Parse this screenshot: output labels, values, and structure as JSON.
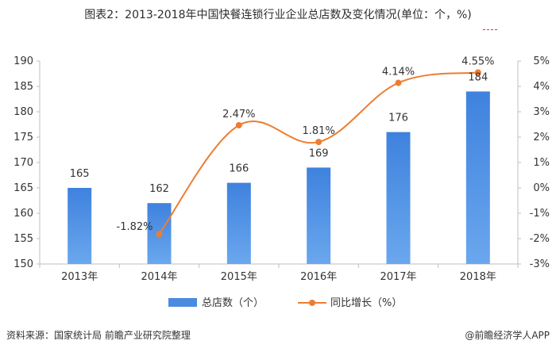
{
  "title": "图表2：2013-2018年中国快餐连锁行业企业总店数及变化情况(单位：个，%)",
  "source": "资料来源：国家统计局 前瞻产业研究院整理",
  "credit": "@前瞻经济学人APP",
  "chart_data": {
    "type": "bar",
    "categories": [
      "2013年",
      "2014年",
      "2015年",
      "2016年",
      "2017年",
      "2018年"
    ],
    "series": [
      {
        "name": "总店数（个）",
        "type": "bar",
        "axis": "left",
        "values": [
          165,
          162,
          166,
          169,
          176,
          184
        ],
        "labels": [
          "165",
          "162",
          "166",
          "169",
          "176",
          "184"
        ],
        "color": "#4a8be0"
      },
      {
        "name": "同比增长（%）",
        "type": "line",
        "axis": "right",
        "values": [
          null,
          -1.82,
          2.47,
          1.81,
          4.14,
          4.55
        ],
        "labels": [
          "",
          "-1.82%",
          "2.47%",
          "1.81%",
          "4.14%",
          "4.55%"
        ],
        "color": "#ed7d31"
      }
    ],
    "y_left": {
      "range": [
        150,
        190
      ],
      "ticks": [
        "150",
        "155",
        "160",
        "165",
        "170",
        "175",
        "180",
        "185",
        "190"
      ]
    },
    "y_right": {
      "range": [
        -3,
        5
      ],
      "ticks": [
        "-3%",
        "-2%",
        "-1%",
        "0%",
        "1%",
        "2%",
        "3%",
        "4%",
        "5%"
      ]
    },
    "grid": false,
    "legend": "bottom"
  }
}
